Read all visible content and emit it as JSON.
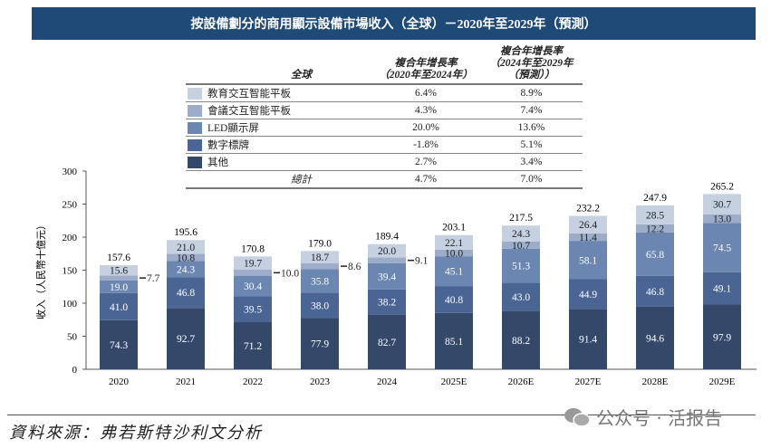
{
  "title": "按設備劃分的商用顯示設備市場收入（全球）－2020年至2029年（預測）",
  "table": {
    "header": [
      "全球",
      "複合年增長率\n（2020年至2024年）",
      "複合年增長率\n（2024年至2029年\n（預測））"
    ],
    "rows": [
      {
        "label": "教育交互智能平板",
        "color": "#c5d0e0",
        "c1": "6.4%",
        "c2": "8.9%"
      },
      {
        "label": "會議交互智能平板",
        "color": "#9dadc9",
        "c1": "4.3%",
        "c2": "7.4%"
      },
      {
        "label": "LED顯示屏",
        "color": "#6b86b0",
        "c1": "20.0%",
        "c2": "13.6%"
      },
      {
        "label": "數字標牌",
        "color": "#4a6594",
        "c1": "-1.8%",
        "c2": "5.1%"
      },
      {
        "label": "其他",
        "color": "#34496a",
        "c1": "2.7%",
        "c2": "3.4%"
      }
    ],
    "total": {
      "label": "總計",
      "c1": "4.7%",
      "c2": "7.0%"
    }
  },
  "chart_data": {
    "type": "bar",
    "stacked": true,
    "ylabel": "收入（人民幣十億元）",
    "ylim": [
      0,
      300
    ],
    "yticks": [
      0,
      50,
      100,
      150,
      200,
      250,
      300
    ],
    "categories": [
      "2020",
      "2021",
      "2022",
      "2023",
      "2024",
      "2025E",
      "2026E",
      "2027E",
      "2028E",
      "2029E"
    ],
    "series": [
      {
        "name": "其他",
        "color": "#34496a",
        "values": [
          74.3,
          92.7,
          71.2,
          77.9,
          82.7,
          85.1,
          88.2,
          91.4,
          94.6,
          97.9
        ]
      },
      {
        "name": "數字標牌",
        "color": "#4a6594",
        "values": [
          41.0,
          46.8,
          39.5,
          38.0,
          38.2,
          40.8,
          43.0,
          44.9,
          46.8,
          49.1
        ]
      },
      {
        "name": "LED顯示屏",
        "color": "#6b86b0",
        "values": [
          19.0,
          24.3,
          30.4,
          35.8,
          39.4,
          45.1,
          51.3,
          58.1,
          65.8,
          74.5
        ]
      },
      {
        "name": "會議交互智能平板",
        "color": "#9dadc9",
        "values": [
          7.7,
          10.8,
          10.0,
          8.6,
          9.1,
          10.0,
          10.7,
          11.4,
          12.2,
          13.0
        ]
      },
      {
        "name": "教育交互智能平板",
        "color": "#c5d0e0",
        "values": [
          15.6,
          21.0,
          19.7,
          18.7,
          20.0,
          22.1,
          24.3,
          26.4,
          28.5,
          30.7
        ]
      }
    ],
    "totals": [
      157.6,
      195.6,
      170.8,
      179.0,
      189.4,
      203.1,
      217.5,
      232.2,
      247.9,
      265.2
    ],
    "grid": false,
    "legend": "top (table)"
  },
  "footer": {
    "source": "資料來源：弗若斯特沙利文分析",
    "watermark": "公众号 · 活报告"
  }
}
